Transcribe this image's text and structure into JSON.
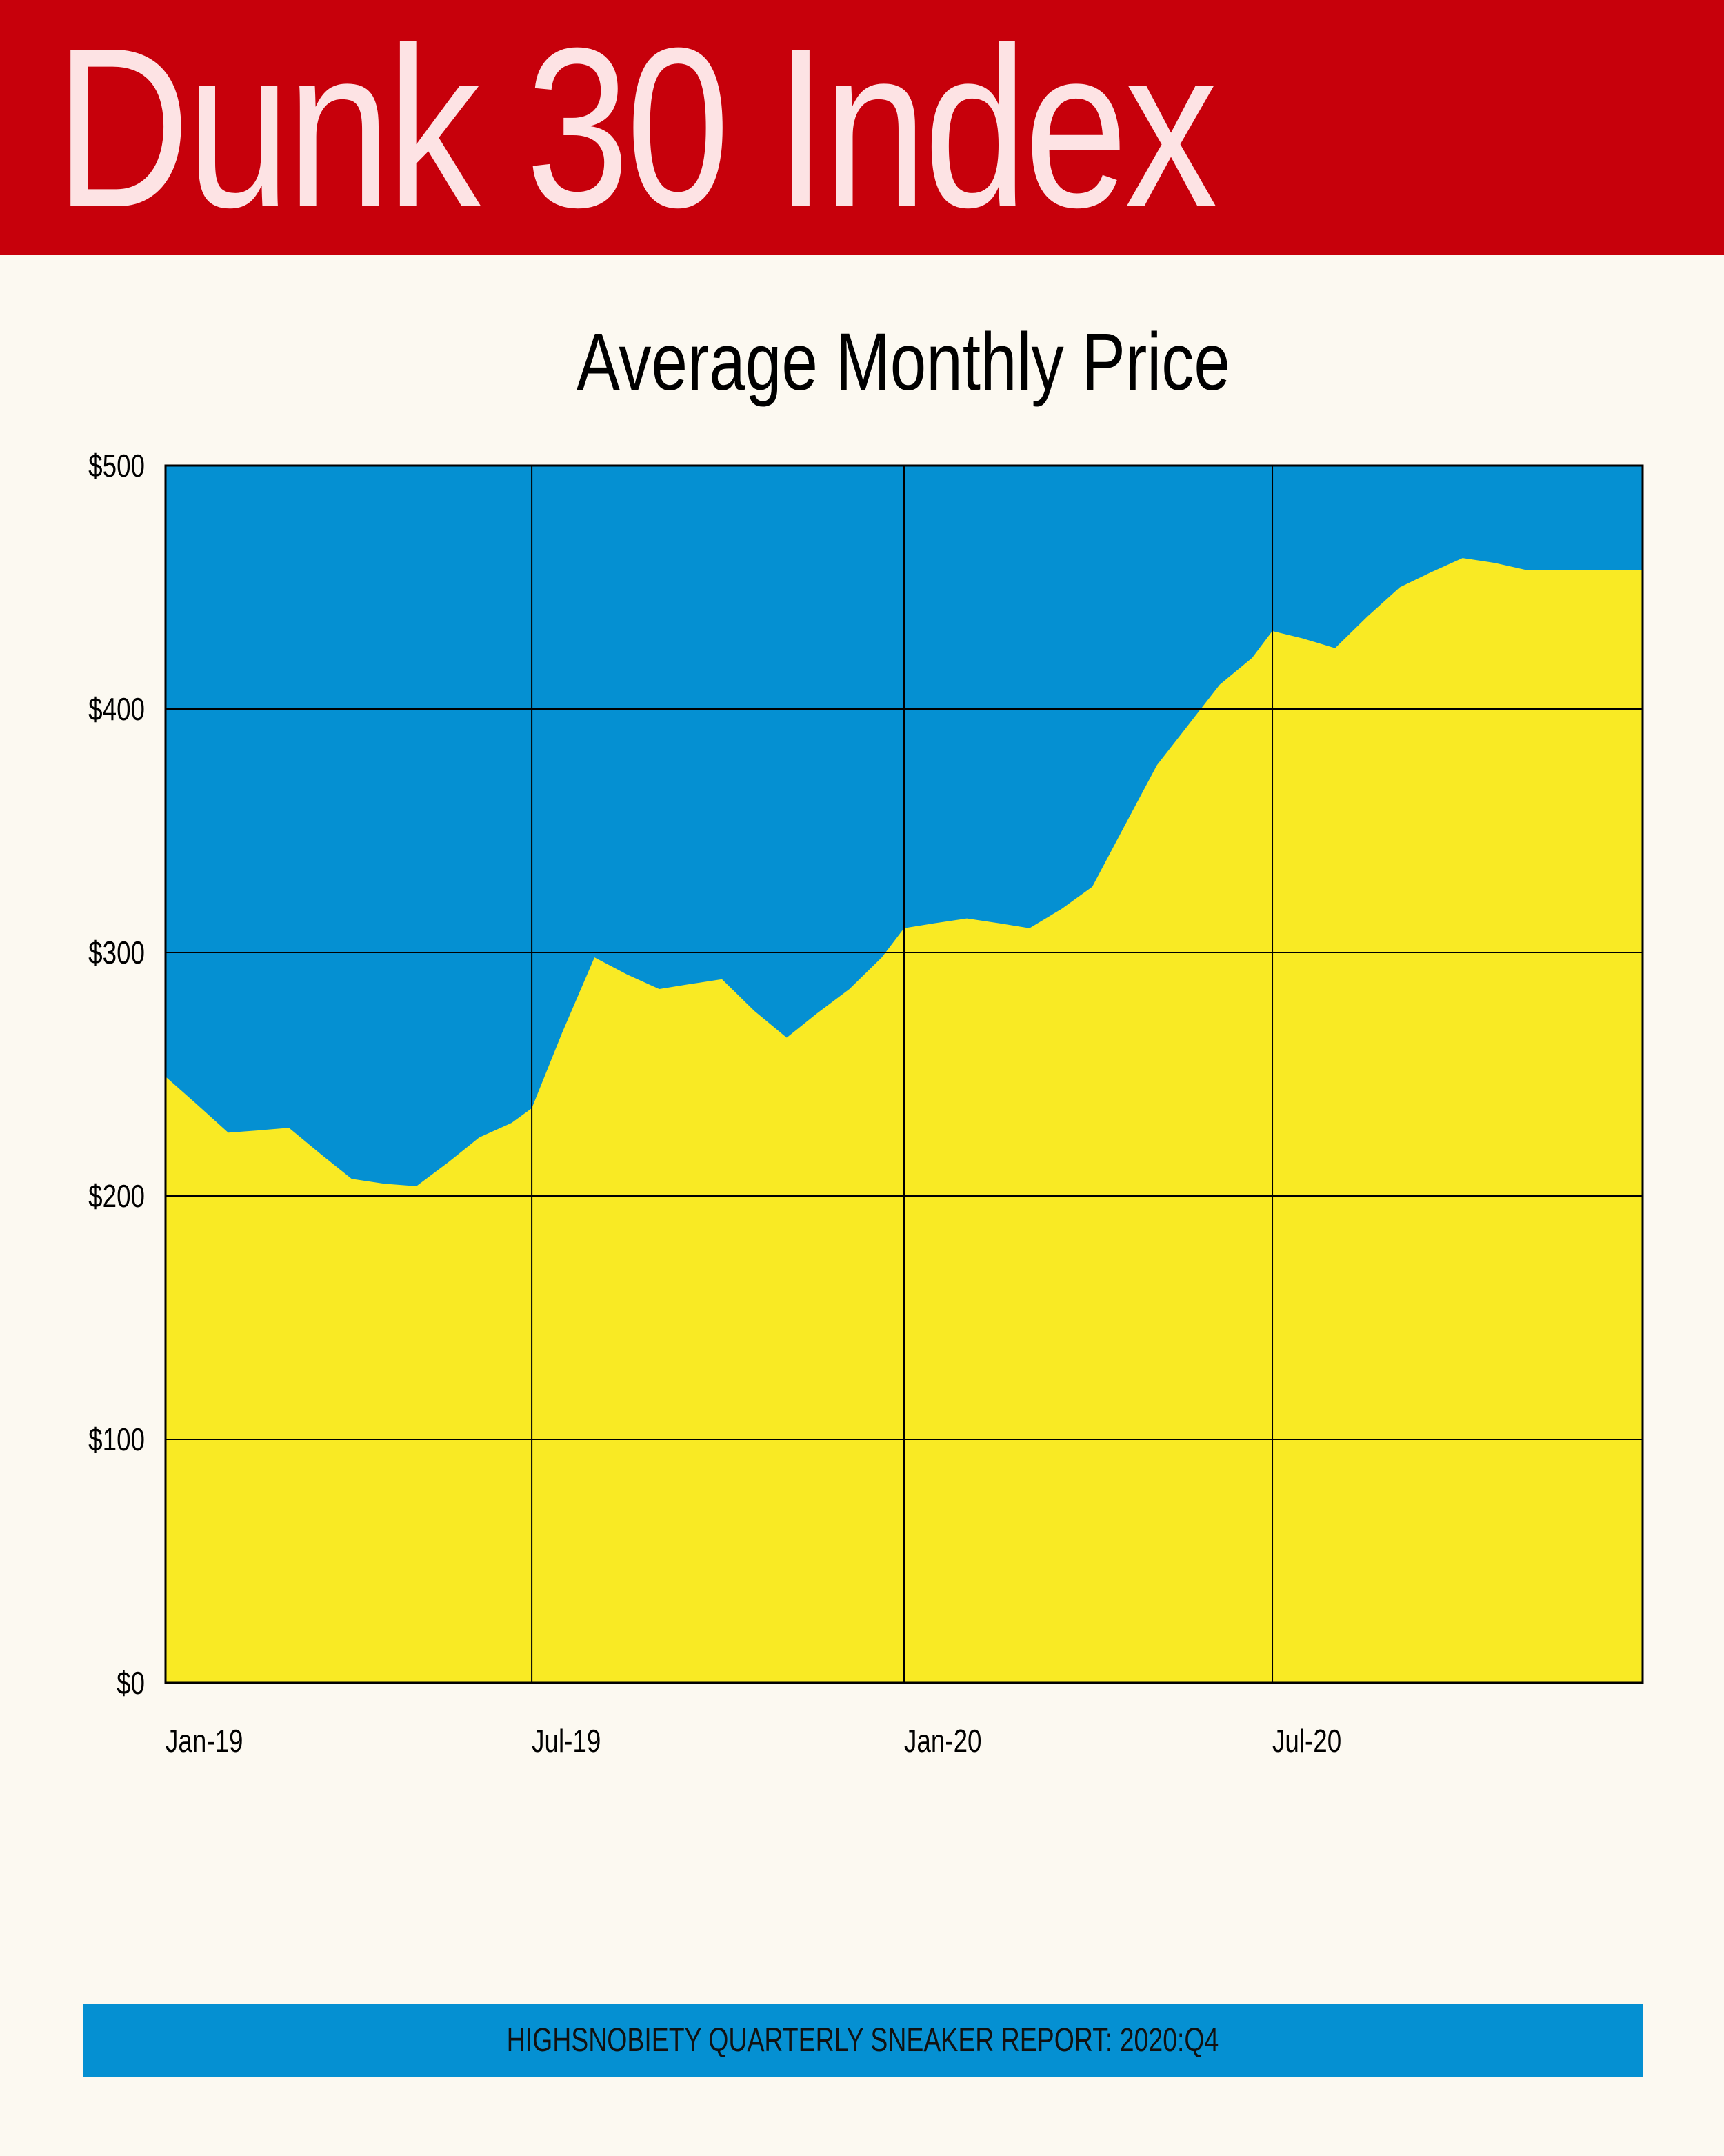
{
  "header": {
    "title": "Dunk 30 Index"
  },
  "footer": {
    "text": "HIGHSNOBIETY QUARTERLY SNEAKER REPORT: 2020:Q4"
  },
  "colors": {
    "banner": "#c7000b",
    "banner_text": "#fde3e4",
    "background": "#fcf9f1",
    "area_fill": "#f9ea24",
    "plot_background": "#0590d2",
    "footer_bar": "#0590d2"
  },
  "chart_data": {
    "type": "area",
    "title": "Average Monthly Price",
    "xlabel": "",
    "ylabel": "",
    "x_tick_labels": [
      "Jan-19",
      "Jul-19",
      "Jan-20",
      "Jul-20"
    ],
    "x_tick_dates": [
      "2019-01-01",
      "2019-07-01",
      "2020-01-01",
      "2020-07-01"
    ],
    "x_range": [
      "2019-01-01",
      "2020-12-31"
    ],
    "y_tick_labels": [
      "$0",
      "$100",
      "$200",
      "$300",
      "$400",
      "$500"
    ],
    "ylim": [
      0,
      500
    ],
    "grid": true,
    "legend": false,
    "series": [
      {
        "x": [
          "2019-01-01",
          "2019-01-16",
          "2019-02-01",
          "2019-02-17",
          "2019-03-03",
          "2019-03-19",
          "2019-04-03",
          "2019-04-19",
          "2019-05-05",
          "2019-05-21",
          "2019-06-05",
          "2019-06-21",
          "2019-07-01",
          "2019-07-16",
          "2019-08-01",
          "2019-08-17",
          "2019-09-02",
          "2019-09-17",
          "2019-10-03",
          "2019-10-19",
          "2019-11-04",
          "2019-11-19",
          "2019-12-05",
          "2019-12-21",
          "2020-01-01",
          "2020-01-16",
          "2020-02-01",
          "2020-02-17",
          "2020-03-03",
          "2020-03-19",
          "2020-04-03",
          "2020-04-19",
          "2020-05-05",
          "2020-05-21",
          "2020-06-05",
          "2020-06-21",
          "2020-07-01",
          "2020-07-16",
          "2020-08-01",
          "2020-08-17",
          "2020-09-02",
          "2020-09-17",
          "2020-10-03",
          "2020-10-19",
          "2020-11-04",
          "2020-11-19",
          "2020-12-05",
          "2020-12-21",
          "2020-12-31"
        ],
        "values": [
          249,
          238,
          226,
          227,
          228,
          217,
          207,
          205,
          204,
          214,
          224,
          230,
          236,
          267,
          298,
          291,
          285,
          287,
          289,
          276,
          265,
          275,
          285,
          298,
          310,
          312,
          314,
          312,
          310,
          318,
          327,
          352,
          377,
          394,
          410,
          421,
          432,
          429,
          425,
          438,
          450,
          456,
          462,
          460,
          457,
          457,
          457,
          457,
          457
        ]
      }
    ]
  }
}
